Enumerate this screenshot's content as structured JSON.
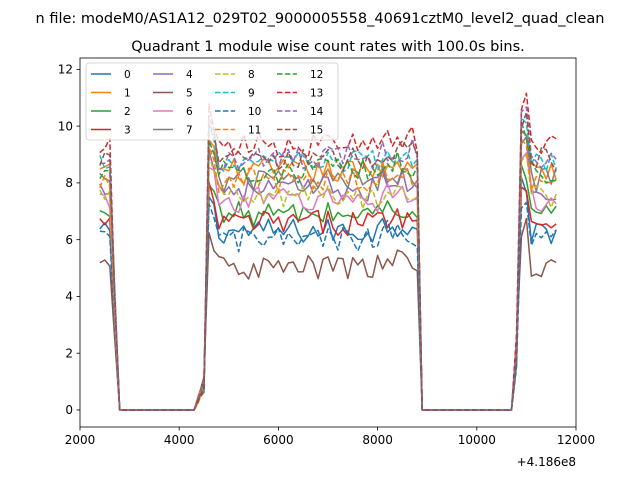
{
  "figure": {
    "suptitle": "n file: modeM0/AS1A12_029T02_9000005558_40691cztM0_level2_quad_clean"
  },
  "chart_data": {
    "type": "line",
    "title": "Quadrant 1 module wise count rates with 100.0s bins.",
    "xlabel": "",
    "ylabel": "",
    "x_offset_label": "+4.186e8",
    "xlim": [
      2000,
      12000
    ],
    "ylim": [
      -0.6,
      12.4
    ],
    "xticks": [
      2000,
      4000,
      6000,
      8000,
      10000,
      12000
    ],
    "xtick_labels": [
      "2000",
      "4000",
      "6000",
      "8000",
      "10000",
      "12000"
    ],
    "yticks": [
      0,
      2,
      4,
      6,
      8,
      10,
      12
    ],
    "ytick_labels": [
      "0",
      "2",
      "4",
      "6",
      "8",
      "10",
      "12"
    ],
    "grid": false,
    "legend_location": "upper left",
    "legend_columns": 4,
    "segments": [
      {
        "start": 2400,
        "end": 2800
      },
      {
        "start": 4400,
        "end": 8800
      },
      {
        "start": 10800,
        "end": 11600
      }
    ],
    "series": [
      {
        "name": "0",
        "level": 6.3,
        "edge": 6.0,
        "color": "#1f77b4",
        "dashed": false
      },
      {
        "name": "1",
        "level": 8.4,
        "edge": 9.0,
        "color": "#ff7f0e",
        "dashed": false
      },
      {
        "name": "2",
        "level": 6.9,
        "edge": 9.0,
        "color": "#2ca02c",
        "dashed": false
      },
      {
        "name": "3",
        "level": 6.6,
        "edge": 6.8,
        "color": "#d62728",
        "dashed": false
      },
      {
        "name": "4",
        "level": 7.8,
        "edge": 7.2,
        "color": "#9467bd",
        "dashed": false
      },
      {
        "name": "5",
        "level": 5.0,
        "edge": 5.3,
        "color": "#8c564b",
        "dashed": false
      },
      {
        "name": "6",
        "level": 7.4,
        "edge": 6.9,
        "color": "#e377c2",
        "dashed": false
      },
      {
        "name": "7",
        "level": 8.1,
        "edge": 7.5,
        "color": "#7f7f7f",
        "dashed": false
      },
      {
        "name": "8",
        "level": 7.5,
        "edge": 8.5,
        "color": "#bcbd22",
        "dashed": true
      },
      {
        "name": "9",
        "level": 8.7,
        "edge": 8.2,
        "color": "#17becf",
        "dashed": true
      },
      {
        "name": "10",
        "level": 6.0,
        "edge": 6.4,
        "color": "#1f77b4",
        "dashed": true
      },
      {
        "name": "11",
        "level": 8.1,
        "edge": 8.0,
        "color": "#ff7f0e",
        "dashed": true
      },
      {
        "name": "12",
        "level": 8.4,
        "edge": 8.8,
        "color": "#2ca02c",
        "dashed": true
      },
      {
        "name": "13",
        "level": 9.3,
        "edge": 9.2,
        "color": "#d62728",
        "dashed": true
      },
      {
        "name": "14",
        "level": 8.9,
        "edge": 7.3,
        "color": "#9467bd",
        "dashed": true
      },
      {
        "name": "15",
        "level": 8.8,
        "edge": 8.5,
        "color": "#8c564b",
        "dashed": true
      }
    ]
  }
}
